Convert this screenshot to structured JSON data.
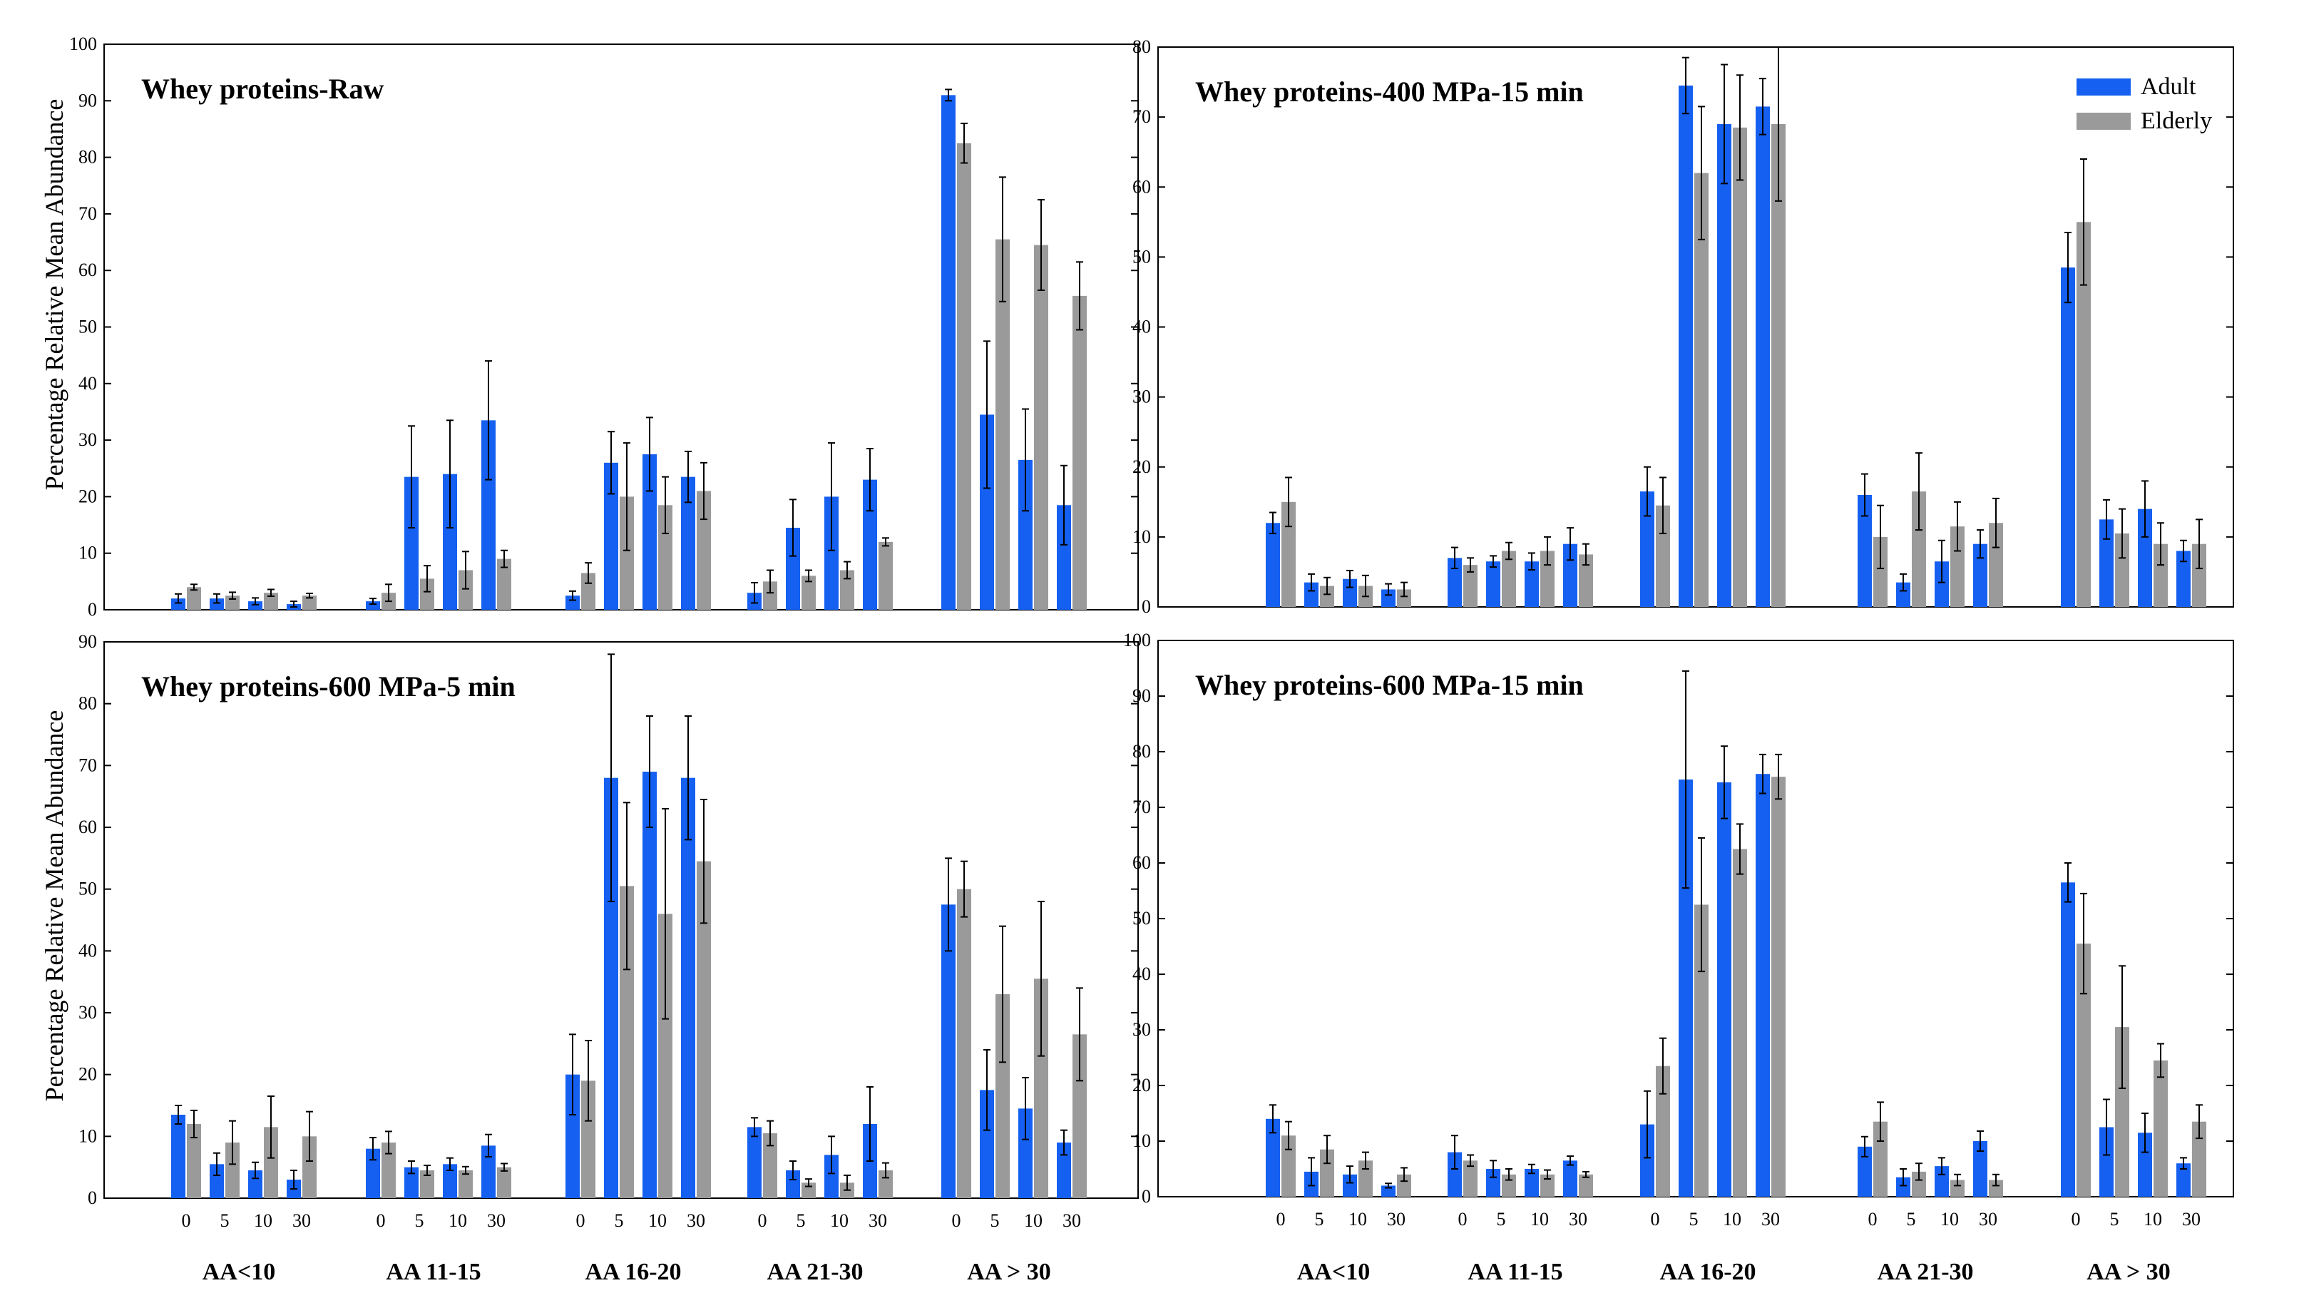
{
  "figure": {
    "ylabel_top": "Percentage  Relative  Mean Abundance",
    "ylabel_bottom": "Percentage  Relative  Mean Abundance",
    "legend": {
      "items": [
        {
          "label": "Adult",
          "color": "#1560f0"
        },
        {
          "label": "Elderly",
          "color": "#9a9a9a"
        }
      ]
    }
  },
  "chart_data": [
    {
      "type": "bar",
      "title": "Whey proteins-Raw",
      "ylim": [
        0,
        100
      ],
      "yticks": [
        0,
        10,
        20,
        30,
        40,
        50,
        60,
        70,
        80,
        90,
        100
      ],
      "groups": [
        "AA<10",
        "AA 11-15",
        "AA 16-20",
        "AA 21-30",
        "AA > 30"
      ],
      "subcategories": [
        "0",
        "5",
        "10",
        "30"
      ],
      "show_x_ticks": false,
      "series": [
        {
          "name": "Adult",
          "values": [
            [
              2,
              2,
              1.5,
              1
            ],
            [
              1.5,
              23.5,
              24,
              33.5
            ],
            [
              2.5,
              26,
              27.5,
              23.5
            ],
            [
              3,
              14.5,
              20,
              23
            ],
            [
              91,
              34.5,
              26.5,
              18.5
            ]
          ],
          "errors": [
            [
              0.8,
              0.8,
              0.6,
              0.5
            ],
            [
              0.5,
              9,
              9.5,
              10.5
            ],
            [
              0.8,
              5.5,
              6.5,
              4.5
            ],
            [
              1.8,
              5,
              9.5,
              5.5
            ],
            [
              1,
              13,
              9,
              7
            ]
          ]
        },
        {
          "name": "Elderly",
          "values": [
            [
              4,
              2.5,
              3,
              2.5
            ],
            [
              3,
              5.5,
              7,
              9
            ],
            [
              6.5,
              20,
              18.5,
              21
            ],
            [
              5,
              6,
              7,
              12
            ],
            [
              82.5,
              65.5,
              64.5,
              55.5
            ]
          ],
          "errors": [
            [
              0.5,
              0.6,
              0.6,
              0.4
            ],
            [
              1.5,
              2.3,
              3.3,
              1.5
            ],
            [
              1.8,
              9.5,
              5,
              5
            ],
            [
              2,
              1,
              1.5,
              0.7
            ],
            [
              3.5,
              11,
              8,
              6
            ]
          ]
        }
      ]
    },
    {
      "type": "bar",
      "title": "Whey proteins-400 MPa-15 min",
      "ylim": [
        0,
        80
      ],
      "yticks": [
        0,
        10,
        20,
        30,
        40,
        50,
        60,
        70,
        80
      ],
      "groups": [
        "AA<10",
        "AA 11-15",
        "AA 16-20",
        "AA 21-30",
        "AA > 30"
      ],
      "subcategories": [
        "0",
        "5",
        "10",
        "30"
      ],
      "show_x_ticks": false,
      "series": [
        {
          "name": "Adult",
          "values": [
            [
              12,
              3.5,
              4,
              2.5
            ],
            [
              7,
              6.5,
              6.5,
              9
            ],
            [
              16.5,
              74.5,
              69,
              71.5
            ],
            [
              16,
              3.5,
              6.5,
              9
            ],
            [
              48.5,
              12.5,
              14,
              8
            ]
          ],
          "errors": [
            [
              1.5,
              1.2,
              1.2,
              0.8
            ],
            [
              1.5,
              0.8,
              1.2,
              2.3
            ],
            [
              3.5,
              4,
              8.5,
              4
            ],
            [
              3,
              1.2,
              3,
              2
            ],
            [
              5,
              2.8,
              4,
              1.5
            ]
          ]
        },
        {
          "name": "Elderly",
          "values": [
            [
              15,
              3,
              3,
              2.5
            ],
            [
              6,
              8,
              8,
              7.5
            ],
            [
              14.5,
              62,
              68.5,
              69
            ],
            [
              10,
              16.5,
              11.5,
              12
            ],
            [
              55,
              10.5,
              9,
              9
            ]
          ],
          "errors": [
            [
              3.5,
              1.2,
              1.5,
              1
            ],
            [
              1,
              1.2,
              2,
              1.5
            ],
            [
              4,
              9.5,
              7.5,
              11
            ],
            [
              4.5,
              5.5,
              3.5,
              3.5
            ],
            [
              9,
              3.5,
              3,
              3.5
            ]
          ]
        }
      ]
    },
    {
      "type": "bar",
      "title": "Whey proteins-600 MPa-5 min",
      "ylim": [
        0,
        90
      ],
      "yticks": [
        0,
        10,
        20,
        30,
        40,
        50,
        60,
        70,
        80,
        90
      ],
      "groups": [
        "AA<10",
        "AA 11-15",
        "AA 16-20",
        "AA 21-30",
        "AA > 30"
      ],
      "subcategories": [
        "0",
        "5",
        "10",
        "30"
      ],
      "show_x_ticks": true,
      "series": [
        {
          "name": "Adult",
          "values": [
            [
              13.5,
              5.5,
              4.5,
              3
            ],
            [
              8,
              5,
              5.5,
              8.5
            ],
            [
              20,
              68,
              69,
              68
            ],
            [
              11.5,
              4.5,
              7,
              12
            ],
            [
              47.5,
              17.5,
              14.5,
              9
            ]
          ],
          "errors": [
            [
              1.5,
              1.8,
              1.3,
              1.5
            ],
            [
              1.8,
              1,
              1,
              1.8
            ],
            [
              6.5,
              20,
              9,
              10
            ],
            [
              1.5,
              1.5,
              3,
              6
            ],
            [
              7.5,
              6.5,
              5,
              2
            ]
          ]
        },
        {
          "name": "Elderly",
          "values": [
            [
              12,
              9,
              11.5,
              10
            ],
            [
              9,
              4.5,
              4.5,
              5
            ],
            [
              19,
              50.5,
              46,
              54.5
            ],
            [
              10.5,
              2.5,
              2.5,
              4.5
            ],
            [
              50,
              33,
              35.5,
              26.5
            ]
          ],
          "errors": [
            [
              2.2,
              3.5,
              5,
              4
            ],
            [
              1.8,
              0.8,
              0.6,
              0.6
            ],
            [
              6.5,
              13.5,
              17,
              10
            ],
            [
              2,
              0.6,
              1.2,
              1.2
            ],
            [
              4.5,
              11,
              12.5,
              7.5
            ]
          ]
        }
      ]
    },
    {
      "type": "bar",
      "title": "Whey proteins-600 MPa-15 min",
      "ylim": [
        0,
        100
      ],
      "yticks": [
        0,
        10,
        20,
        30,
        40,
        50,
        60,
        70,
        80,
        90,
        100
      ],
      "groups": [
        "AA<10",
        "AA 11-15",
        "AA 16-20",
        "AA 21-30",
        "AA > 30"
      ],
      "subcategories": [
        "0",
        "5",
        "10",
        "30"
      ],
      "show_x_ticks": true,
      "series": [
        {
          "name": "Adult",
          "values": [
            [
              14,
              4.5,
              4,
              2
            ],
            [
              8,
              5,
              5,
              6.5
            ],
            [
              13,
              75,
              74.5,
              76
            ],
            [
              9,
              3.5,
              5.5,
              10
            ],
            [
              56.5,
              12.5,
              11.5,
              6
            ]
          ],
          "errors": [
            [
              2.5,
              2.5,
              1.5,
              0.4
            ],
            [
              3,
              1.5,
              0.8,
              0.8
            ],
            [
              6,
              19.5,
              6.5,
              3.5
            ],
            [
              1.8,
              1.5,
              1.5,
              1.8
            ],
            [
              3.5,
              5,
              3.5,
              1
            ]
          ]
        },
        {
          "name": "Elderly",
          "values": [
            [
              11,
              8.5,
              6.5,
              4
            ],
            [
              6.5,
              4,
              4,
              4
            ],
            [
              23.5,
              52.5,
              62.5,
              75.5
            ],
            [
              13.5,
              4.5,
              3,
              3
            ],
            [
              45.5,
              30.5,
              24.5,
              13.5
            ]
          ],
          "errors": [
            [
              2.5,
              2.5,
              1.5,
              1.2
            ],
            [
              1,
              1,
              0.8,
              0.5
            ],
            [
              5,
              12,
              4.5,
              4
            ],
            [
              3.5,
              1.5,
              1,
              1
            ],
            [
              9,
              11,
              3,
              3
            ]
          ]
        }
      ]
    }
  ]
}
